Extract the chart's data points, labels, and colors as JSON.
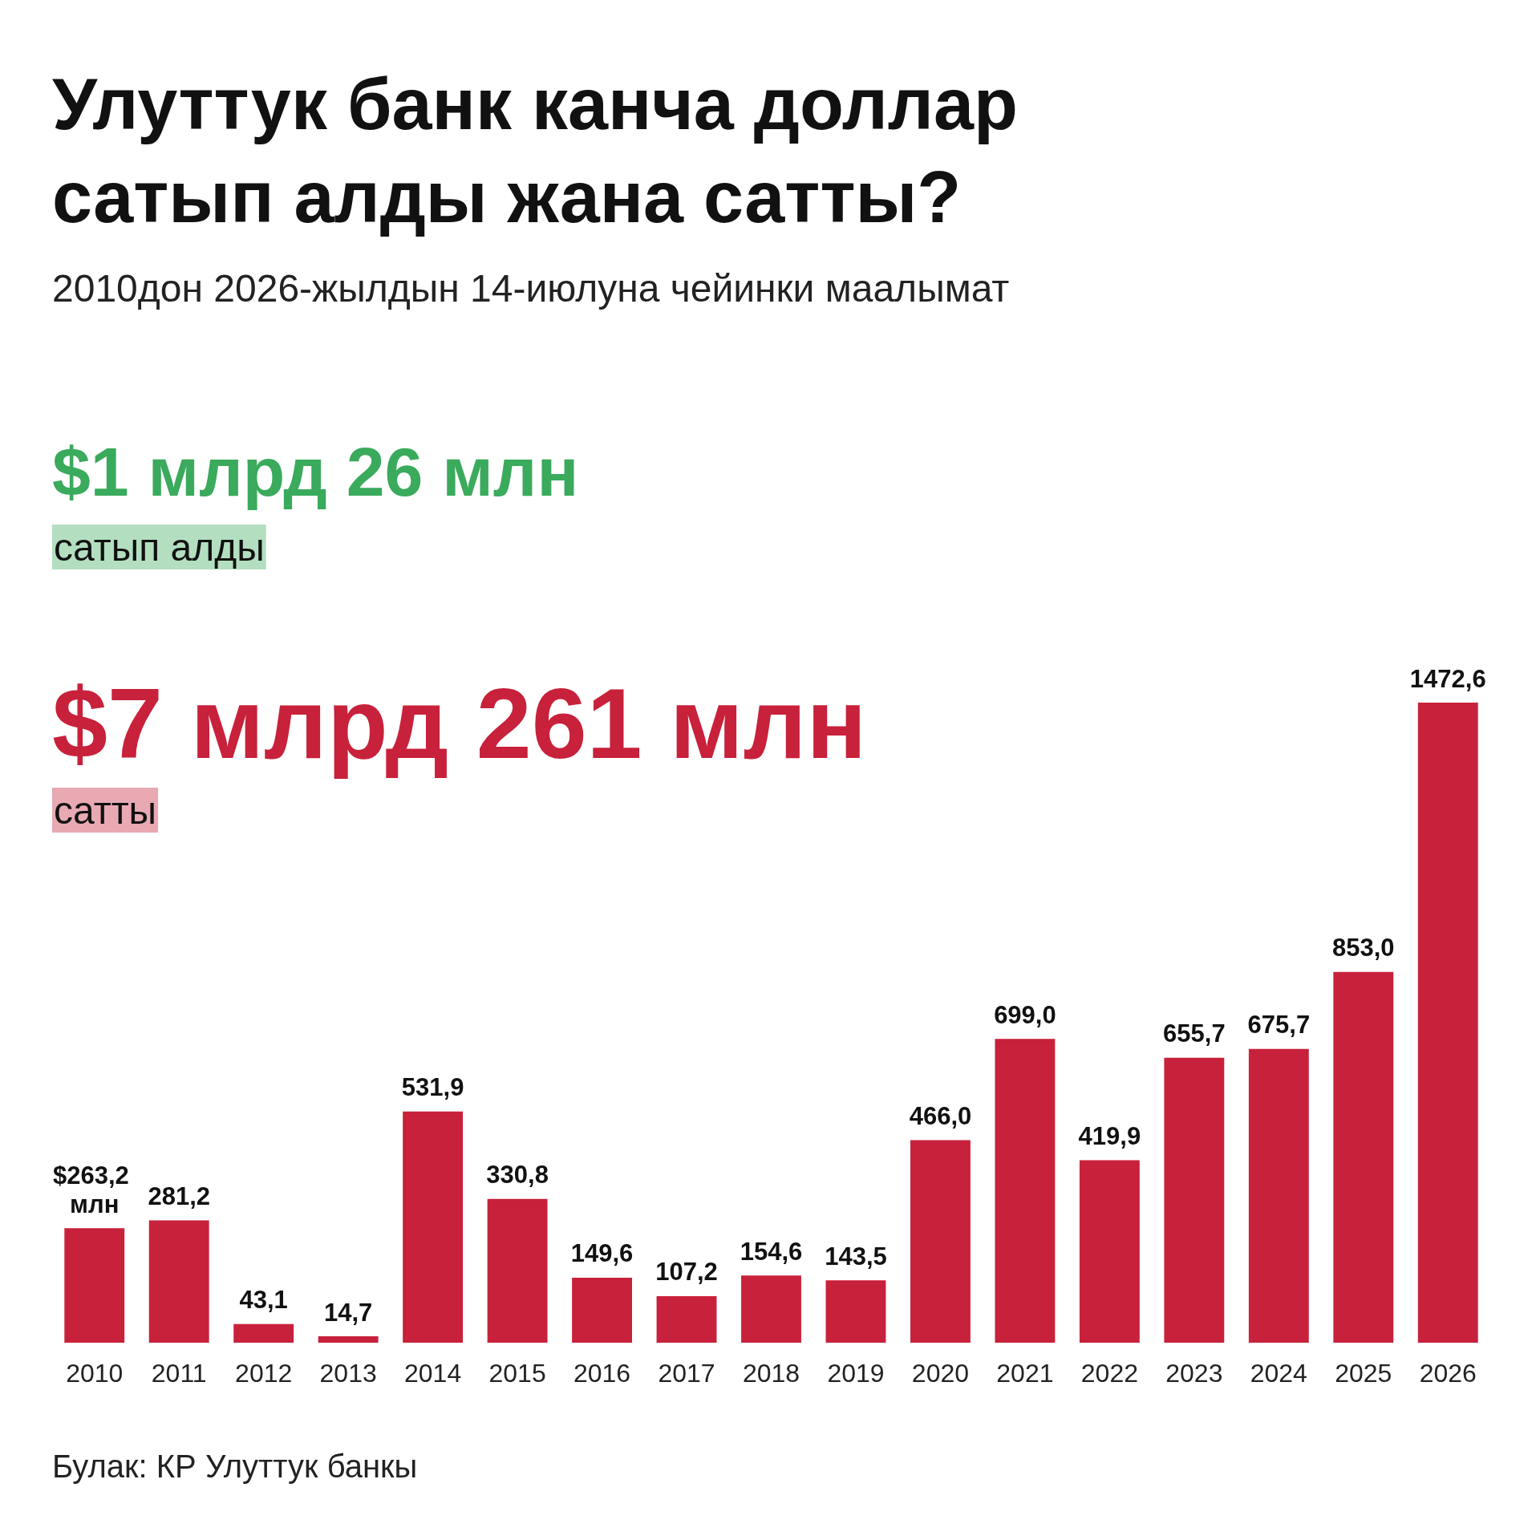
{
  "chart_data": {
    "type": "bar",
    "title": "Улуттук банк канча доллар сатып алды жана сатты?",
    "subtitle": "2010дон 2026-жылдын 14-июлуна чейинки маалымат",
    "annotations": [
      "$1 млрд 26 млн",
      "сатып алды",
      "$7 млрд 261 млн",
      "сатты",
      "Булак: КР Улуттук банкы"
    ],
    "categories": [
      "2010",
      "2011",
      "2012",
      "2013",
      "2014",
      "2015",
      "2016",
      "2017",
      "2018",
      "2019",
      "2020",
      "2021",
      "2022",
      "2023",
      "2024",
      "2025",
      "2026"
    ],
    "values": [
      263.2,
      281.2,
      43.1,
      14.7,
      531.9,
      330.8,
      149.6,
      107.2,
      154.6,
      143.5,
      466.0,
      699.0,
      419.9,
      655.7,
      675.7,
      853.0,
      1472.6
    ],
    "value_labels": [
      "$263,2 млн",
      "281,2",
      "43,1",
      "14,7",
      "531,9",
      "330,8",
      "149,6",
      "107,2",
      "154,6",
      "143,5",
      "466,0",
      "699,0",
      "419,9",
      "655,7",
      "675,7",
      "853,0",
      "1472,6"
    ],
    "color": "#c8213b"
  }
}
